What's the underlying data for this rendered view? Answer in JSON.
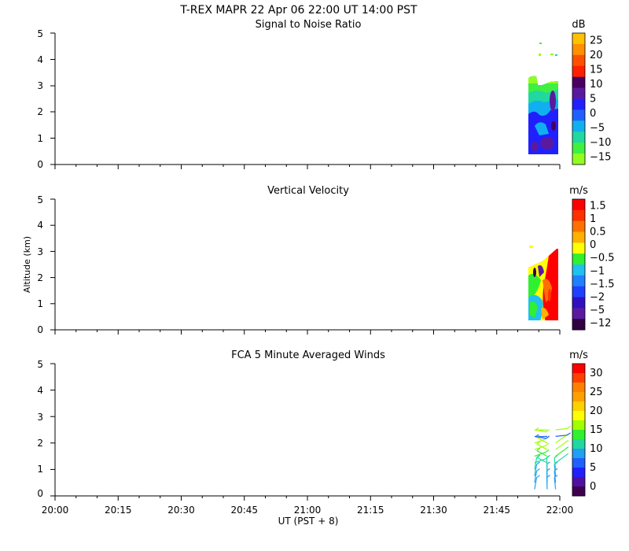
{
  "header": {
    "title": "T-REX  MAPR 22 Apr 06  22:00 UT  14:00  PST"
  },
  "shared_x": {
    "label": "UT  (PST + 8)",
    "ticks": [
      "20:00",
      "20:15",
      "20:30",
      "20:45",
      "21:00",
      "21:15",
      "21:30",
      "21:45",
      "22:00"
    ]
  },
  "chart_data": [
    {
      "type": "heatmap",
      "title": "Signal to Noise Ratio",
      "x_range": [
        "20:00",
        "22:00"
      ],
      "ylim": [
        0,
        5
      ],
      "y_ticks": [
        "0",
        "1",
        "2",
        "3",
        "4",
        "5"
      ],
      "colorbar": {
        "unit": "dB",
        "labels": [
          "25",
          "20",
          "15",
          "10",
          "5",
          "0",
          "−5",
          "−10",
          "−15"
        ],
        "colors": [
          "#ffc000",
          "#ff9000",
          "#ff5000",
          "#ff2000",
          "#4a0060",
          "#5a1aa0",
          "#2020ff",
          "#2060ff",
          "#10b0f0",
          "#20d8a0",
          "#40f040",
          "#90ff20"
        ]
      },
      "data_extent": {
        "x_start": "21:53",
        "x_end": "21:59",
        "y_bottom": 0.35,
        "y_top": 3.3
      }
    },
    {
      "type": "heatmap",
      "title": "Vertical Velocity",
      "x_range": [
        "20:00",
        "22:00"
      ],
      "ylabel": "Altitude (km)",
      "ylim": [
        0,
        5
      ],
      "y_ticks": [
        "0",
        "1",
        "2",
        "3",
        "4",
        "5"
      ],
      "colorbar": {
        "unit": "m/s",
        "labels": [
          "1.5",
          "1",
          "0.5",
          "0",
          "−0.5",
          "−1",
          "−1.5",
          "−2",
          "−5",
          "−12"
        ],
        "colors": [
          "#ff0000",
          "#ff3000",
          "#ff7000",
          "#ffb000",
          "#ffff00",
          "#30f030",
          "#20c0f0",
          "#2080ff",
          "#2040ff",
          "#3010c0",
          "#5a1aa0",
          "#300040"
        ]
      },
      "data_extent": {
        "x_start": "21:53",
        "x_end": "21:59",
        "y_bottom": 0.35,
        "y_top": 3.1
      }
    },
    {
      "type": "scatter",
      "title": "FCA 5 Minute Averaged Winds",
      "x_range": [
        "20:00",
        "22:00"
      ],
      "ylim": [
        0,
        5
      ],
      "y_ticks": [
        "0",
        "1",
        "2",
        "3",
        "4",
        "5"
      ],
      "colorbar": {
        "unit": "m/s",
        "labels": [
          "30",
          "25",
          "20",
          "15",
          "10",
          "5",
          "0"
        ],
        "colors": [
          "#ff0000",
          "#ff4000",
          "#ff8000",
          "#ffa000",
          "#ffd000",
          "#ffff00",
          "#a0ff00",
          "#30f030",
          "#20d8a0",
          "#20a0f0",
          "#2060ff",
          "#2020ff",
          "#5010a0",
          "#400050"
        ]
      },
      "wind_columns": [
        "21:54",
        "21:57",
        "21:59"
      ],
      "wind_altitudes": [
        0.25,
        0.5,
        0.75,
        1.0,
        1.25,
        1.5,
        1.75,
        2.0,
        2.25,
        2.5
      ]
    }
  ]
}
